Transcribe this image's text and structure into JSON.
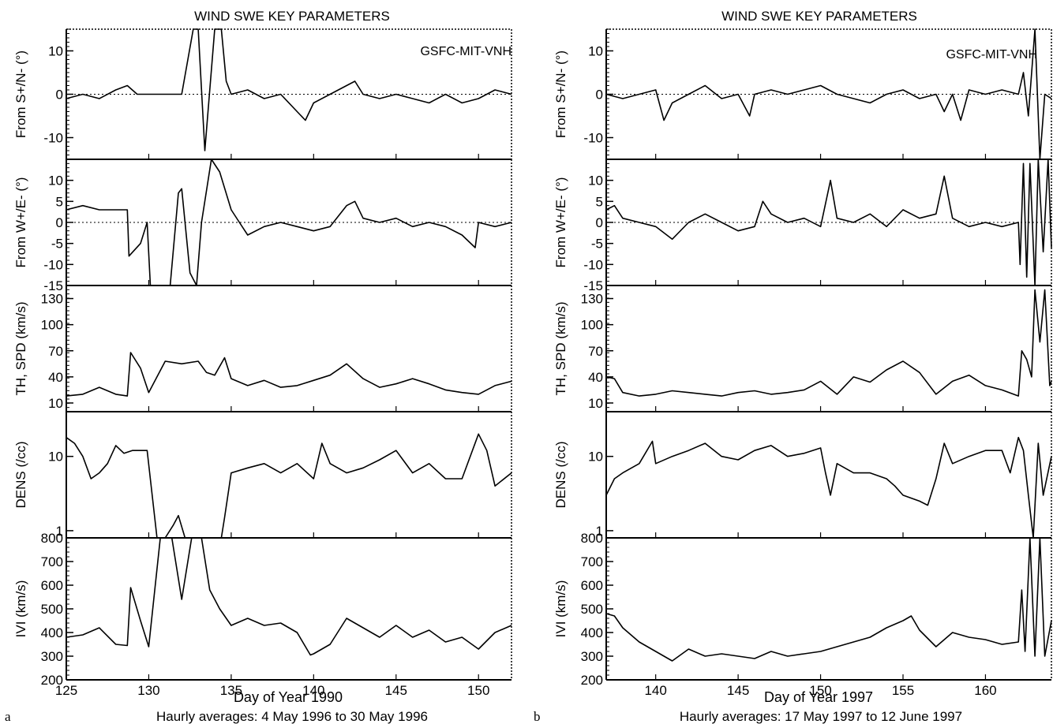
{
  "chart_data": [
    {
      "type": "line",
      "letter": "a",
      "title": "WIND SWE KEY PARAMETERS",
      "source_label": "GSFC-MIT-VNH",
      "xlabel": "Day of Year 1990",
      "caption": "Haurly averages: 4 May 1996 to 30 May 1996",
      "xlim": [
        125,
        152
      ],
      "xticks": [
        125,
        130,
        135,
        140,
        145,
        150
      ],
      "subplots": [
        {
          "ylabel": "From S+/N- (°)",
          "ylim": [
            -15,
            15
          ],
          "yticks": [
            10,
            0,
            -10
          ],
          "zero_line": true,
          "series": {
            "x": [
              125,
              126,
              127,
              128,
              128.7,
              129.3,
              130,
              131,
              132,
              132.7,
              133,
              133.4,
              134,
              134.4,
              134.7,
              135,
              136,
              137,
              138,
              139,
              139.5,
              140,
              141,
              142,
              142.5,
              143,
              144,
              145,
              146,
              147,
              148,
              149,
              150,
              151,
              152
            ],
            "y": [
              -1,
              0,
              -1,
              1,
              2,
              0,
              0,
              0,
              0,
              15,
              15,
              -13,
              15,
              15,
              3,
              0,
              1,
              -1,
              0,
              -4,
              -6,
              -2,
              0,
              2,
              3,
              0,
              -1,
              0,
              -1,
              -2,
              0,
              -2,
              -1,
              1,
              0
            ]
          }
        },
        {
          "ylabel": "From W+/E- (°)",
          "ylim": [
            -15,
            15
          ],
          "yticks": [
            10,
            5,
            0,
            -5,
            -10,
            -15
          ],
          "zero_line": true,
          "series": {
            "x": [
              125,
              126,
              127,
              128,
              128.7,
              128.8,
              129.5,
              129.9,
              130.1,
              131.3,
              131.8,
              132,
              132.5,
              132.9,
              133.2,
              133.8,
              134.3,
              135,
              135.5,
              136,
              137,
              138,
              139,
              140,
              141,
              142,
              142.5,
              143,
              144,
              145,
              146,
              147,
              148,
              149,
              149.8,
              150,
              151,
              152
            ],
            "y": [
              3,
              4,
              3,
              3,
              3,
              -8,
              -5,
              0,
              -15,
              -15,
              7,
              8,
              -12,
              -15,
              0,
              15,
              12,
              3,
              0,
              -3,
              -1,
              0,
              -1,
              -2,
              -1,
              4,
              5,
              1,
              0,
              1,
              -1,
              0,
              -1,
              -3,
              -6,
              0,
              -1,
              0
            ]
          }
        },
        {
          "ylabel": "TH, SPD (km/s)",
          "ylim": [
            0,
            145
          ],
          "yticks": [
            130,
            100,
            70,
            40,
            10
          ],
          "series": {
            "x": [
              125,
              126,
              127,
              128,
              128.7,
              128.9,
              129.5,
              130,
              131,
              132,
              133,
              133.5,
              134,
              134.6,
              135,
              136,
              137,
              138,
              139,
              140,
              141,
              142,
              143,
              144,
              145,
              146,
              147,
              148,
              149,
              150,
              151,
              152
            ],
            "y": [
              18,
              20,
              28,
              20,
              18,
              68,
              50,
              22,
              58,
              55,
              58,
              45,
              42,
              62,
              38,
              30,
              36,
              28,
              30,
              36,
              42,
              55,
              38,
              28,
              32,
              38,
              32,
              25,
              22,
              20,
              30,
              35
            ]
          }
        },
        {
          "ylabel": "DENS (/cc)",
          "yscale": "log",
          "ylim": [
            0.8,
            40
          ],
          "yticks": [
            10,
            1
          ],
          "series": {
            "x": [
              125,
              125.5,
              126,
              126.5,
              127,
              127.5,
              128,
              128.5,
              129,
              129.9,
              130.5,
              131,
              131.5,
              131.8,
              132.2,
              132.6,
              134.4,
              134.6,
              135,
              136,
              137,
              138,
              139,
              140,
              140.5,
              141,
              142,
              143,
              144,
              145,
              146,
              147,
              148,
              149,
              150,
              150.5,
              151,
              152
            ],
            "y": [
              18,
              15,
              10,
              5,
              6,
              8,
              14,
              11,
              12,
              12,
              0.8,
              0.8,
              1.2,
              1.6,
              0.8,
              0.8,
              0.8,
              1.5,
              6,
              7,
              8,
              6,
              8,
              5,
              15,
              8,
              6,
              7,
              9,
              12,
              6,
              8,
              5,
              5,
              20,
              12,
              4,
              6
            ]
          }
        },
        {
          "ylabel": "IVI (km/s)",
          "ylim": [
            200,
            800
          ],
          "yticks": [
            800,
            700,
            600,
            500,
            400,
            300,
            200
          ],
          "series": {
            "x": [
              125,
              126,
              127,
              128,
              128.7,
              128.9,
              129.5,
              130,
              130.7,
              131.4,
              132,
              132.6,
              133.2,
              133.7,
              134.3,
              135,
              136,
              137,
              138,
              139,
              139.8,
              140,
              141,
              142,
              143,
              144,
              145,
              146,
              147,
              148,
              149,
              150,
              151,
              152
            ],
            "y": [
              380,
              390,
              420,
              350,
              345,
              590,
              450,
              340,
              800,
              800,
              540,
              800,
              800,
              580,
              500,
              430,
              460,
              430,
              440,
              400,
              305,
              310,
              350,
              460,
              420,
              380,
              430,
              380,
              410,
              360,
              380,
              330,
              400,
              430
            ]
          }
        }
      ]
    },
    {
      "type": "line",
      "letter": "b",
      "title": "WIND SWE KEY PARAMETERS",
      "source_label": "GSFC-MIT-VNH",
      "xlabel": "Day of Year 1997",
      "caption": "Haurly averages: 17 May 1997 to 12 June 1997",
      "xlim": [
        137,
        164
      ],
      "xticks": [
        140,
        145,
        150,
        155,
        160
      ],
      "subplots": [
        {
          "ylabel": "From S+/N- (°)",
          "ylim": [
            -15,
            15
          ],
          "yticks": [
            10,
            0,
            -10
          ],
          "zero_line": true,
          "series": {
            "x": [
              137,
              138,
              139,
              140,
              140.5,
              141,
              142,
              143,
              144,
              145,
              145.7,
              146,
              147,
              148,
              149,
              150,
              151,
              152,
              153,
              154,
              155,
              156,
              157,
              157.5,
              158,
              158.5,
              159,
              160,
              161,
              162,
              162.3,
              162.6,
              163,
              163.3,
              163.6,
              164
            ],
            "y": [
              0,
              -1,
              0,
              1,
              -6,
              -2,
              0,
              2,
              -1,
              0,
              -5,
              0,
              1,
              0,
              1,
              2,
              0,
              -1,
              -2,
              0,
              1,
              -1,
              0,
              -4,
              0,
              -6,
              1,
              0,
              1,
              0,
              5,
              -5,
              15,
              -15,
              0,
              -1
            ]
          }
        },
        {
          "ylabel": "From W+/E- (°)",
          "ylim": [
            -15,
            15
          ],
          "yticks": [
            10,
            5,
            0,
            -5,
            -10,
            -15
          ],
          "zero_line": true,
          "series": {
            "x": [
              137,
              137.5,
              138,
              139,
              140,
              141,
              142,
              143,
              144,
              145,
              146,
              146.5,
              147,
              148,
              149,
              150,
              150.6,
              151,
              152,
              153,
              154,
              155,
              156,
              157,
              157.5,
              158,
              159,
              160,
              161,
              162,
              162.1,
              162.3,
              162.5,
              162.7,
              163,
              163.2,
              163.5,
              163.8,
              164
            ],
            "y": [
              3,
              4,
              1,
              0,
              -1,
              -4,
              0,
              2,
              0,
              -2,
              -1,
              5,
              2,
              0,
              1,
              -1,
              10,
              1,
              0,
              2,
              -1,
              3,
              1,
              2,
              11,
              1,
              -1,
              0,
              -1,
              0,
              -10,
              14,
              -13,
              14,
              -15,
              15,
              -7,
              15,
              -6
            ]
          }
        },
        {
          "ylabel": "TH, SPD (km/s)",
          "ylim": [
            0,
            145
          ],
          "yticks": [
            130,
            100,
            70,
            40,
            10
          ],
          "series": {
            "x": [
              137,
              137.5,
              138,
              139,
              140,
              141,
              142,
              143,
              144,
              145,
              146,
              147,
              148,
              149,
              150,
              151,
              152,
              153,
              154,
              155,
              156,
              157,
              158,
              159,
              160,
              161,
              162,
              162.2,
              162.5,
              162.8,
              163,
              163.3,
              163.6,
              163.9,
              164
            ],
            "y": [
              40,
              38,
              22,
              18,
              20,
              24,
              22,
              20,
              18,
              22,
              24,
              20,
              22,
              25,
              35,
              20,
              40,
              34,
              48,
              58,
              45,
              20,
              35,
              42,
              30,
              25,
              18,
              70,
              60,
              40,
              140,
              80,
              140,
              30,
              35
            ]
          }
        },
        {
          "ylabel": "DENS (/cc)",
          "yscale": "log",
          "ylim": [
            0.8,
            40
          ],
          "yticks": [
            10,
            1
          ],
          "series": {
            "x": [
              137,
              137.5,
              138,
              139,
              139.8,
              140,
              141,
              142,
              143,
              144,
              145,
              146,
              147,
              148,
              149,
              150,
              150.3,
              150.6,
              151,
              152,
              153,
              154,
              154.5,
              155,
              156,
              156.5,
              157,
              157.5,
              158,
              159,
              160,
              161,
              161.5,
              162,
              162.3,
              162.6,
              162.9,
              163.2,
              163.5,
              164
            ],
            "y": [
              3,
              5,
              6,
              8,
              16,
              8,
              10,
              12,
              15,
              10,
              9,
              12,
              14,
              10,
              11,
              13,
              6,
              3,
              8,
              6,
              6,
              5,
              4,
              3,
              2.5,
              2.2,
              5,
              15,
              8,
              10,
              12,
              12,
              6,
              18,
              12,
              3,
              0.8,
              15,
              3,
              10
            ]
          }
        },
        {
          "ylabel": "IVI (km/s)",
          "ylim": [
            200,
            800
          ],
          "yticks": [
            800,
            700,
            600,
            500,
            400,
            300,
            200
          ],
          "series": {
            "x": [
              137,
              137.5,
              138,
              139,
              140,
              141,
              142,
              143,
              144,
              145,
              146,
              147,
              148,
              149,
              150,
              151,
              152,
              153,
              154,
              155,
              155.5,
              156,
              157,
              158,
              159,
              160,
              161,
              162,
              162.2,
              162.4,
              162.7,
              163,
              163.3,
              163.6,
              164
            ],
            "y": [
              480,
              470,
              420,
              360,
              320,
              280,
              330,
              300,
              310,
              300,
              290,
              320,
              300,
              310,
              320,
              340,
              360,
              380,
              420,
              450,
              470,
              410,
              340,
              400,
              380,
              370,
              350,
              360,
              580,
              320,
              800,
              300,
              800,
              300,
              450
            ]
          }
        }
      ]
    }
  ]
}
